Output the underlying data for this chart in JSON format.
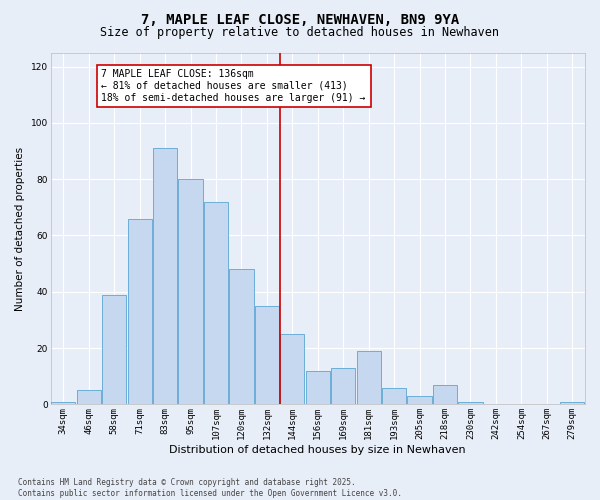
{
  "title": "7, MAPLE LEAF CLOSE, NEWHAVEN, BN9 9YA",
  "subtitle": "Size of property relative to detached houses in Newhaven",
  "xlabel": "Distribution of detached houses by size in Newhaven",
  "ylabel": "Number of detached properties",
  "categories": [
    "34sqm",
    "46sqm",
    "58sqm",
    "71sqm",
    "83sqm",
    "95sqm",
    "107sqm",
    "120sqm",
    "132sqm",
    "144sqm",
    "156sqm",
    "169sqm",
    "181sqm",
    "193sqm",
    "205sqm",
    "218sqm",
    "230sqm",
    "242sqm",
    "254sqm",
    "267sqm",
    "279sqm"
  ],
  "values": [
    1,
    5,
    39,
    66,
    91,
    80,
    72,
    48,
    35,
    25,
    12,
    13,
    19,
    6,
    3,
    7,
    1,
    0,
    0,
    0,
    1
  ],
  "bar_color": "#c5d8ef",
  "bar_edge_color": "#6aaed6",
  "bg_color": "#e8eef8",
  "grid_color": "#ffffff",
  "vline_color": "#cc0000",
  "vline_pos": 8.5,
  "annotation_line1": "7 MAPLE LEAF CLOSE: 136sqm",
  "annotation_line2": "← 81% of detached houses are smaller (413)",
  "annotation_line3": "18% of semi-detached houses are larger (91) →",
  "annotation_box_color": "#cc0000",
  "ylim": [
    0,
    125
  ],
  "yticks": [
    0,
    20,
    40,
    60,
    80,
    100,
    120
  ],
  "footer": "Contains HM Land Registry data © Crown copyright and database right 2025.\nContains public sector information licensed under the Open Government Licence v3.0.",
  "title_fontsize": 10,
  "subtitle_fontsize": 8.5,
  "xlabel_fontsize": 8,
  "ylabel_fontsize": 7.5,
  "tick_fontsize": 6.5,
  "annotation_fontsize": 7,
  "footer_fontsize": 5.5
}
